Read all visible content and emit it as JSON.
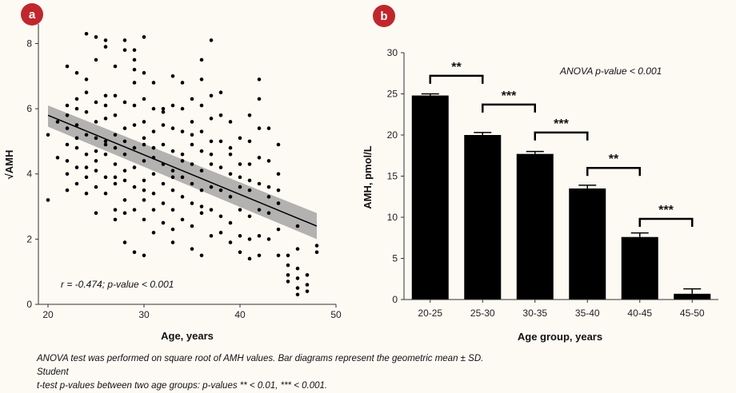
{
  "caption_line1": "ANOVA test was performed on square root of AMH values. Bar diagrams represent the geometric mean ± SD. Student",
  "caption_line2": "t-test p-values between two age groups: p-values ** < 0.01, *** < 0.001.",
  "chart_data": [
    {
      "type": "scatter",
      "badge": "a",
      "xlabel": "Age, years",
      "ylabel": "√AMH",
      "xlim": [
        19,
        50
      ],
      "ylim": [
        0,
        8.6
      ],
      "xticks": [
        20,
        30,
        40,
        50
      ],
      "yticks": [
        0,
        2,
        4,
        6,
        8
      ],
      "annotation": "r = -0.474; p-value < 0.001",
      "regression": {
        "x": [
          20,
          48
        ],
        "y": [
          5.8,
          2.4
        ]
      },
      "confidence_band": {
        "x": [
          20,
          48
        ],
        "upper": [
          6.1,
          2.8
        ],
        "lower": [
          5.45,
          2.0
        ]
      },
      "points": [
        [
          20,
          5.2
        ],
        [
          20,
          3.2
        ],
        [
          22,
          7.3
        ],
        [
          22,
          6.1
        ],
        [
          22,
          5.8
        ],
        [
          22,
          5.4
        ],
        [
          22,
          4.9
        ],
        [
          22,
          4.0
        ],
        [
          22,
          3.5
        ],
        [
          22,
          4.4
        ],
        [
          23,
          7.1
        ],
        [
          23,
          6.3
        ],
        [
          23,
          5.5
        ],
        [
          23,
          4.8
        ],
        [
          23,
          4.2
        ],
        [
          23,
          3.7
        ],
        [
          23,
          5.1
        ],
        [
          24,
          8.3
        ],
        [
          24,
          6.5
        ],
        [
          24,
          5.9
        ],
        [
          24,
          5.2
        ],
        [
          24,
          4.6
        ],
        [
          24,
          3.9
        ],
        [
          24,
          3.4
        ],
        [
          24,
          6.9
        ],
        [
          24,
          4.2
        ],
        [
          25,
          8.2
        ],
        [
          25,
          6.2
        ],
        [
          25,
          5.6
        ],
        [
          25,
          4.7
        ],
        [
          25,
          4.1
        ],
        [
          25,
          3.6
        ],
        [
          25,
          2.8
        ],
        [
          25,
          5.1
        ],
        [
          25,
          7.5
        ],
        [
          26,
          8.1
        ],
        [
          26,
          7.9
        ],
        [
          26,
          6.4
        ],
        [
          26,
          5.7
        ],
        [
          26,
          5.0
        ],
        [
          26,
          4.6
        ],
        [
          26,
          3.4
        ],
        [
          26,
          4.9
        ],
        [
          26,
          6.1
        ],
        [
          27,
          7.3
        ],
        [
          27,
          6.4
        ],
        [
          27,
          5.8
        ],
        [
          27,
          5.2
        ],
        [
          27,
          4.3
        ],
        [
          27,
          3.7
        ],
        [
          27,
          2.9
        ],
        [
          27,
          2.6
        ],
        [
          27,
          4.8
        ],
        [
          28,
          8.1
        ],
        [
          28,
          7.8
        ],
        [
          28,
          6.2
        ],
        [
          28,
          5.4
        ],
        [
          28,
          4.6
        ],
        [
          28,
          3.8
        ],
        [
          28,
          3.2
        ],
        [
          28,
          2.8
        ],
        [
          28,
          1.9
        ],
        [
          28,
          5.0
        ],
        [
          29,
          7.8
        ],
        [
          29,
          7.5
        ],
        [
          29,
          7.2
        ],
        [
          29,
          6.1
        ],
        [
          29,
          5.5
        ],
        [
          29,
          4.8
        ],
        [
          29,
          4.2
        ],
        [
          29,
          3.6
        ],
        [
          29,
          2.9
        ],
        [
          29,
          1.6
        ],
        [
          29,
          6.8
        ],
        [
          30,
          8.2
        ],
        [
          30,
          7.1
        ],
        [
          30,
          6.3
        ],
        [
          30,
          5.6
        ],
        [
          30,
          5.1
        ],
        [
          30,
          4.4
        ],
        [
          30,
          3.8
        ],
        [
          30,
          3.2
        ],
        [
          30,
          2.6
        ],
        [
          30,
          1.5
        ],
        [
          30,
          4.9
        ],
        [
          31,
          6.8
        ],
        [
          31,
          6.0
        ],
        [
          31,
          5.3
        ],
        [
          31,
          4.5
        ],
        [
          31,
          4.0
        ],
        [
          31,
          3.4
        ],
        [
          31,
          2.9
        ],
        [
          31,
          2.2
        ],
        [
          32,
          6.0
        ],
        [
          32,
          5.5
        ],
        [
          32,
          4.9
        ],
        [
          32,
          4.3
        ],
        [
          32,
          3.7
        ],
        [
          32,
          3.1
        ],
        [
          32,
          2.5
        ],
        [
          33,
          7.0
        ],
        [
          33,
          6.1
        ],
        [
          33,
          5.4
        ],
        [
          33,
          4.7
        ],
        [
          33,
          4.1
        ],
        [
          33,
          3.5
        ],
        [
          33,
          2.9
        ],
        [
          33,
          2.3
        ],
        [
          33,
          1.9
        ],
        [
          34,
          6.8
        ],
        [
          34,
          6.0
        ],
        [
          34,
          5.3
        ],
        [
          34,
          4.6
        ],
        [
          34,
          3.9
        ],
        [
          34,
          3.3
        ],
        [
          34,
          2.6
        ],
        [
          35,
          6.3
        ],
        [
          35,
          5.6
        ],
        [
          35,
          4.9
        ],
        [
          35,
          4.3
        ],
        [
          35,
          3.7
        ],
        [
          35,
          3.1
        ],
        [
          35,
          2.4
        ],
        [
          35,
          1.7
        ],
        [
          36,
          7.5
        ],
        [
          36,
          6.9
        ],
        [
          36,
          6.1
        ],
        [
          36,
          5.3
        ],
        [
          36,
          4.7
        ],
        [
          36,
          4.1
        ],
        [
          36,
          3.5
        ],
        [
          36,
          2.8
        ],
        [
          36,
          1.5
        ],
        [
          37,
          8.1
        ],
        [
          37,
          6.4
        ],
        [
          37,
          5.7
        ],
        [
          37,
          5.0
        ],
        [
          37,
          4.3
        ],
        [
          37,
          3.6
        ],
        [
          37,
          2.9
        ],
        [
          37,
          2.1
        ],
        [
          38,
          6.5
        ],
        [
          38,
          5.8
        ],
        [
          38,
          5.0
        ],
        [
          38,
          4.2
        ],
        [
          38,
          3.5
        ],
        [
          38,
          2.7
        ],
        [
          38,
          2.2
        ],
        [
          39,
          5.6
        ],
        [
          39,
          4.8
        ],
        [
          39,
          4.0
        ],
        [
          39,
          3.3
        ],
        [
          39,
          2.5
        ],
        [
          39,
          1.9
        ],
        [
          40,
          5.1
        ],
        [
          40,
          4.3
        ],
        [
          40,
          3.6
        ],
        [
          40,
          2.9
        ],
        [
          40,
          2.1
        ],
        [
          40,
          1.6
        ],
        [
          41,
          5.8
        ],
        [
          41,
          5.0
        ],
        [
          41,
          4.3
        ],
        [
          41,
          3.5
        ],
        [
          41,
          2.7
        ],
        [
          41,
          2.0
        ],
        [
          41,
          1.4
        ],
        [
          42,
          6.9
        ],
        [
          42,
          6.3
        ],
        [
          42,
          5.4
        ],
        [
          42,
          4.5
        ],
        [
          42,
          3.7
        ],
        [
          42,
          2.9
        ],
        [
          42,
          2.1
        ],
        [
          42,
          1.5
        ],
        [
          43,
          5.4
        ],
        [
          43,
          4.4
        ],
        [
          43,
          3.6
        ],
        [
          43,
          2.8
        ],
        [
          43,
          2.0
        ],
        [
          44,
          4.9
        ],
        [
          44,
          4.0
        ],
        [
          44,
          3.1
        ],
        [
          44,
          2.3
        ],
        [
          44,
          1.5
        ],
        [
          45,
          1.5
        ],
        [
          45,
          1.2
        ],
        [
          45,
          0.9
        ],
        [
          45,
          0.7
        ],
        [
          46,
          2.4
        ],
        [
          46,
          1.7
        ],
        [
          46,
          1.1
        ],
        [
          46,
          0.8
        ],
        [
          46,
          0.5
        ],
        [
          46,
          0.3
        ],
        [
          47,
          0.9
        ],
        [
          47,
          0.6
        ],
        [
          47,
          0.4
        ],
        [
          48,
          1.8
        ],
        [
          48,
          1.6
        ],
        [
          21,
          5.6
        ],
        [
          21,
          4.5
        ],
        [
          23,
          6.0
        ],
        [
          26,
          3.9
        ],
        [
          28,
          4.1
        ],
        [
          31,
          4.8
        ],
        [
          32,
          5.9
        ],
        [
          34,
          4.4
        ],
        [
          35,
          5.2
        ],
        [
          37,
          4.6
        ],
        [
          39,
          4.6
        ],
        [
          40,
          3.9
        ],
        [
          41,
          3.8
        ],
        [
          43,
          3.3
        ],
        [
          44,
          3.5
        ],
        [
          36,
          3.0
        ],
        [
          33,
          3.9
        ],
        [
          30,
          3.5
        ],
        [
          27,
          3.9
        ],
        [
          25,
          4.4
        ]
      ]
    },
    {
      "type": "bar",
      "badge": "b",
      "xlabel": "Age group, years",
      "ylabel": "AMH, pmol/L",
      "ylim": [
        0,
        30
      ],
      "yticks": [
        0,
        5,
        10,
        15,
        20,
        25,
        30
      ],
      "categories": [
        "20-25",
        "25-30",
        "30-35",
        "35-40",
        "40-45",
        "45-50"
      ],
      "values": [
        24.8,
        20.0,
        17.7,
        13.5,
        7.6,
        0.7
      ],
      "errors": [
        0.2,
        0.3,
        0.3,
        0.4,
        0.5,
        0.6
      ],
      "annotation": "ANOVA p-value < 0.001",
      "brackets": [
        {
          "from": 0,
          "to": 1,
          "y": 27.2,
          "label": "**"
        },
        {
          "from": 1,
          "to": 2,
          "y": 23.7,
          "label": "***"
        },
        {
          "from": 2,
          "to": 3,
          "y": 20.3,
          "label": "***"
        },
        {
          "from": 3,
          "to": 4,
          "y": 16.0,
          "label": "**"
        },
        {
          "from": 4,
          "to": 5,
          "y": 9.8,
          "label": "***"
        }
      ]
    }
  ]
}
